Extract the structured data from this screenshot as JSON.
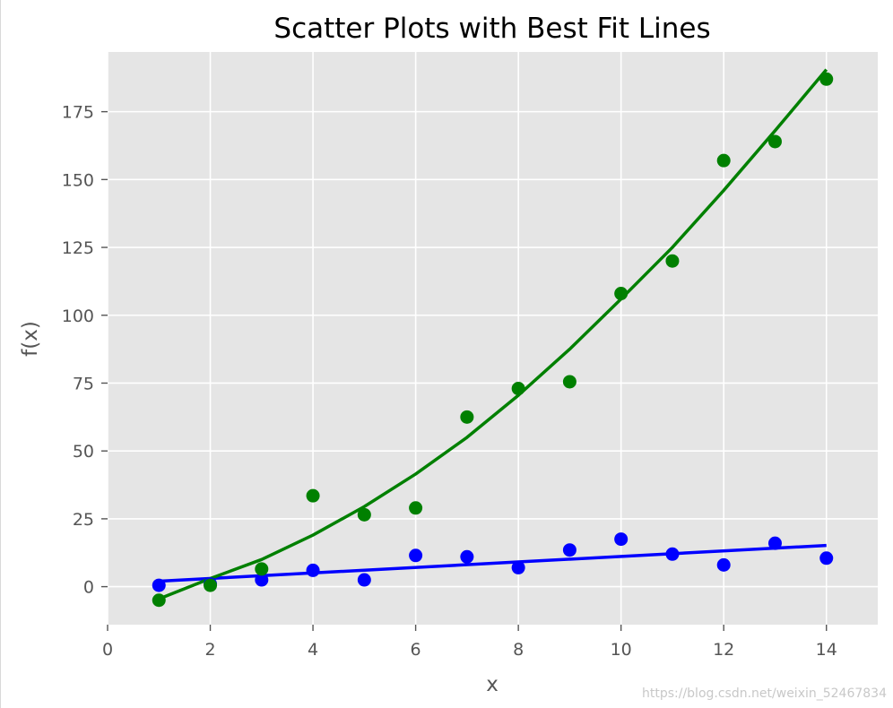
{
  "chart_data": {
    "type": "scatter",
    "title": "Scatter Plots with Best Fit Lines",
    "xlabel": "x",
    "ylabel": "f(x)",
    "xlim": [
      0,
      15
    ],
    "ylim": [
      -14,
      197
    ],
    "xticks": [
      0,
      2,
      4,
      6,
      8,
      10,
      12,
      14
    ],
    "yticks": [
      0,
      25,
      50,
      75,
      100,
      125,
      150,
      175
    ],
    "grid": true,
    "style": "ggplot",
    "colors": {
      "plot_background": "#e5e5e5",
      "grid": "#ffffff",
      "tick_marks": "#555555"
    },
    "series": [
      {
        "color": "#0000ff",
        "points": {
          "x": [
            1,
            2,
            3,
            4,
            5,
            6,
            7,
            8,
            9,
            10,
            11,
            12,
            13,
            14
          ],
          "y": [
            0.5,
            1,
            2.5,
            6,
            2.5,
            11.5,
            11,
            7,
            13.5,
            17.5,
            12,
            8,
            16,
            10.5
          ]
        },
        "fit": {
          "x": [
            1,
            14
          ],
          "y": [
            2,
            15.2
          ]
        }
      },
      {
        "color": "#008000",
        "points": {
          "x": [
            1,
            2,
            3,
            4,
            5,
            6,
            7,
            8,
            9,
            10,
            11,
            12,
            13,
            14
          ],
          "y": [
            -5,
            0.5,
            6.5,
            33.5,
            26.5,
            29,
            62.5,
            73,
            75.5,
            108,
            120,
            157,
            164,
            187
          ]
        },
        "fit": {
          "x": [
            1,
            2,
            3,
            4,
            5,
            6,
            7,
            8,
            9,
            10,
            11,
            12,
            13,
            14
          ],
          "y": [
            -4.5,
            3,
            10,
            19,
            29.5,
            41.5,
            55,
            70.5,
            87.5,
            106,
            125,
            146,
            168,
            190.5
          ]
        }
      }
    ]
  },
  "watermark": "https://blog.csdn.net/weixin_52467834"
}
